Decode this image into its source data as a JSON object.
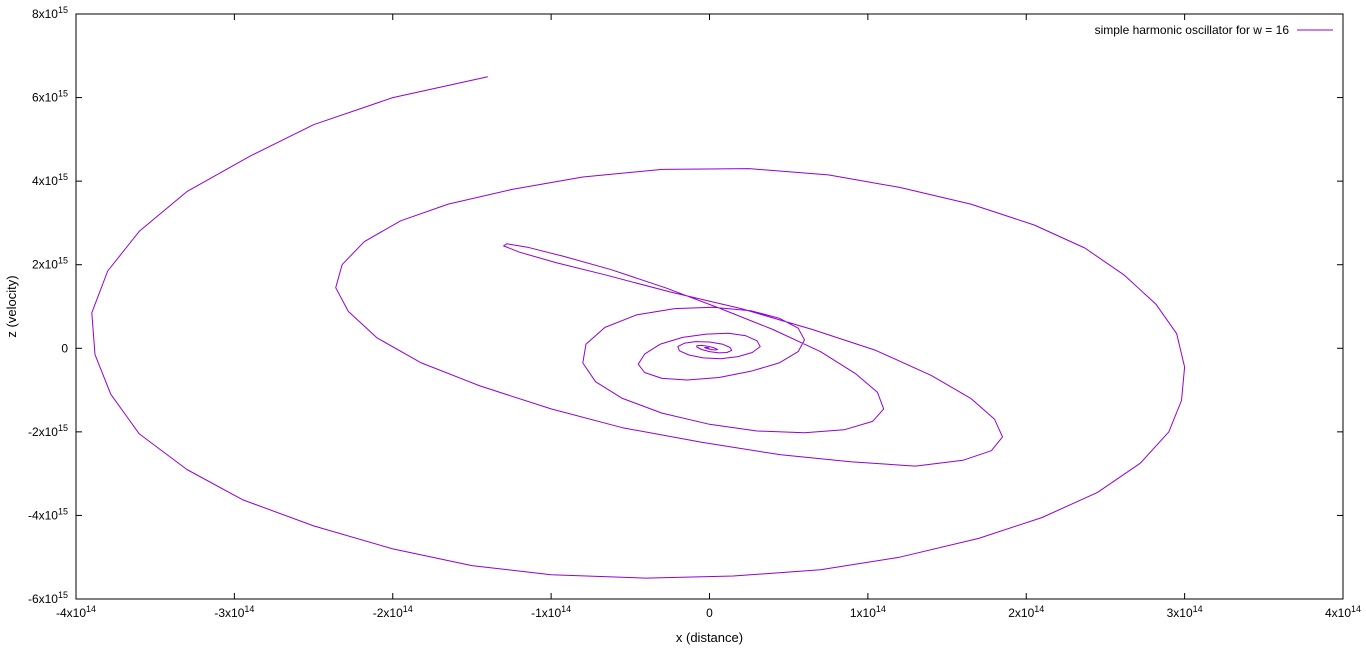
{
  "chart_data": {
    "type": "line",
    "title": "",
    "xlabel": "x (distance)",
    "ylabel": "z (velocity)",
    "xlim": [
      -400000000000000.0,
      400000000000000.0
    ],
    "ylim": [
      -6000000000000000.0,
      8000000000000000.0
    ],
    "x_ticks": [
      {
        "value": -400000000000000.0,
        "mant": "-4x10",
        "exp": "14"
      },
      {
        "value": -300000000000000.0,
        "mant": "-3x10",
        "exp": "14"
      },
      {
        "value": -200000000000000.0,
        "mant": "-2x10",
        "exp": "14"
      },
      {
        "value": -100000000000000.0,
        "mant": "-1x10",
        "exp": "14"
      },
      {
        "value": 0,
        "mant": "0",
        "exp": ""
      },
      {
        "value": 100000000000000.0,
        "mant": "1x10",
        "exp": "14"
      },
      {
        "value": 200000000000000.0,
        "mant": "2x10",
        "exp": "14"
      },
      {
        "value": 300000000000000.0,
        "mant": "3x10",
        "exp": "14"
      },
      {
        "value": 400000000000000.0,
        "mant": "4x10",
        "exp": "14"
      }
    ],
    "y_ticks": [
      {
        "value": -6000000000000000.0,
        "mant": "-6x10",
        "exp": "15"
      },
      {
        "value": -4000000000000000.0,
        "mant": "-4x10",
        "exp": "15"
      },
      {
        "value": -2000000000000000.0,
        "mant": "-2x10",
        "exp": "15"
      },
      {
        "value": 0,
        "mant": "0",
        "exp": ""
      },
      {
        "value": 2000000000000000.0,
        "mant": "2x10",
        "exp": "15"
      },
      {
        "value": 4000000000000000.0,
        "mant": "4x10",
        "exp": "15"
      },
      {
        "value": 6000000000000000.0,
        "mant": "6x10",
        "exp": "15"
      },
      {
        "value": 8000000000000000.0,
        "mant": "8x10",
        "exp": "15"
      }
    ],
    "grid": false,
    "legend_position": "top-right",
    "series": [
      {
        "name": "simple harmonic oscillator for w = 16",
        "color": "#9400D3",
        "x": [
          -140000000000000.0,
          -200000000000000.0,
          -250000000000000.0,
          -290000000000000.0,
          -330000000000000.0,
          -360000000000000.0,
          -380000000000000.0,
          -390000000000000.0,
          -388000000000000.0,
          -378000000000000.0,
          -360000000000000.0,
          -330000000000000.0,
          -295000000000000.0,
          -250000000000000.0,
          -200000000000000.0,
          -150000000000000.0,
          -100000000000000.0,
          -40000000000000.0,
          15000000000000.0,
          70000000000000.0,
          120000000000000.0,
          170000000000000.0,
          210000000000000.0,
          245000000000000.0,
          272000000000000.0,
          290000000000000.0,
          298000000000000.0,
          300000000000000.0,
          295000000000000.0,
          282000000000000.0,
          262000000000000.0,
          237000000000000.0,
          205000000000000.0,
          165000000000000.0,
          120000000000000.0,
          75000000000000.0,
          25000000000000.0,
          -30000000000000.0,
          -80000000000000.0,
          -125000000000000.0,
          -165000000000000.0,
          -195000000000000.0,
          -218000000000000.0,
          -232000000000000.0,
          -236000000000000.0,
          -228000000000000.0,
          -210000000000000.0,
          -182000000000000.0,
          -145000000000000.0,
          -100000000000000.0,
          -55000000000000.0,
          -5000000000000.0,
          45000000000000.0,
          90000000000000.0,
          130000000000000.0,
          160000000000000.0,
          178000000000000.0,
          185000000000000.0,
          180000000000000.0,
          165000000000000.0,
          140000000000000.0,
          105000000000000.0,
          65000000000000.0,
          20000000000000.0,
          -25000000000000.0,
          -65000000000000.0,
          -97000000000000.0,
          -120000000000000.0,
          -130000000000000.0,
          -128000000000000.0,
          -115000000000000.0,
          -92000000000000.0,
          -62000000000000.0,
          -28000000000000.0,
          7000000000000.0,
          40000000000000.0,
          70000000000000.0,
          92000000000000.0,
          106000000000000.0,
          110000000000000.0,
          103000000000000.0,
          85000000000000.0,
          60000000000000.0,
          30000000000000.0,
          0.0,
          -30000000000000.0,
          -55000000000000.0,
          -72000000000000.0,
          -80000000000000.0,
          -78000000000000.0,
          -66000000000000.0,
          -46000000000000.0,
          -22000000000000.0,
          2000000000000.0,
          26000000000000.0,
          44000000000000.0,
          56000000000000.0,
          60000000000000.0,
          56000000000000.0,
          44000000000000.0,
          26000000000000.0,
          6000000000000.0,
          -14000000000000.0,
          -30000000000000.0,
          -41000000000000.0,
          -45000000000000.0,
          -41000000000000.0,
          -31000000000000.0,
          -17000000000000.0,
          -2000000000000.0,
          12000000000000.0,
          23000000000000.0,
          30000000000000.0,
          32000000000000.0,
          27000000000000.0,
          18000000000000.0,
          7000000000000.0,
          -4000000000000.0,
          -13000000000000.0,
          -19000000000000.0,
          -20000000000000.0,
          -16000000000000.0,
          -9000000000000.0,
          0.0,
          8000000000000.0,
          13000000000000.0,
          14000000000000.0,
          11000000000000.0,
          6000000000000.0,
          0.0,
          -5000000000000.0,
          -8000000000000.0,
          -8000000000000.0,
          -5000000000000.0,
          -1000000000000.0,
          3000000000000.0,
          5000000000000.0,
          4000000000000.0,
          1000000000000.0,
          -2000000000000.0,
          -3000000000000.0,
          -1000000000000.0,
          0.0
        ],
        "y": [
          6500000000000000.0,
          6000000000000000.0,
          5350000000000000.0,
          4600000000000000.0,
          3750000000000000.0,
          2800000000000000.0,
          1850000000000000.0,
          850000000000000.0,
          -150000000000000.0,
          -1100000000000000.0,
          -2050000000000000.0,
          -2900000000000000.0,
          -3620000000000000.0,
          -4250000000000000.0,
          -4800000000000000.0,
          -5200000000000000.0,
          -5420000000000000.0,
          -5500000000000000.0,
          -5450000000000000.0,
          -5300000000000000.0,
          -5000000000000000.0,
          -4550000000000000.0,
          -4050000000000000.0,
          -3450000000000000.0,
          -2750000000000000.0,
          -2000000000000000.0,
          -1250000000000000.0,
          -450000000000000.0,
          350000000000000.0,
          1050000000000000.0,
          1750000000000000.0,
          2400000000000000.0,
          2950000000000000.0,
          3450000000000000.0,
          3850000000000000.0,
          4150000000000000.0,
          4300000000000000.0,
          4280000000000000.0,
          4100000000000000.0,
          3800000000000000.0,
          3450000000000000.0,
          3050000000000000.0,
          2550000000000000.0,
          2000000000000000.0,
          1450000000000000.0,
          880000000000000.0,
          250000000000000.0,
          -350000000000000.0,
          -900000000000000.0,
          -1450000000000000.0,
          -1900000000000000.0,
          -2250000000000000.0,
          -2550000000000000.0,
          -2720000000000000.0,
          -2820000000000000.0,
          -2680000000000000.0,
          -2450000000000000.0,
          -2120000000000000.0,
          -1700000000000000.0,
          -1200000000000000.0,
          -650000000000000.0,
          -50000000000000.0,
          450000000000000.0,
          950000000000000.0,
          1350000000000000.0,
          1750000000000000.0,
          2050000000000000.0,
          2300000000000000.0,
          2450000000000000.0,
          2500000000000000.0,
          2420000000000000.0,
          2200000000000000.0,
          1880000000000000.0,
          1450000000000000.0,
          950000000000000.0,
          450000000000000.0,
          -80000000000000.0,
          -600000000000000.0,
          -1050000000000000.0,
          -1450000000000000.0,
          -1750000000000000.0,
          -1950000000000000.0,
          -2020000000000000.0,
          -1980000000000000.0,
          -1820000000000000.0,
          -1550000000000000.0,
          -1200000000000000.0,
          -800000000000000.0,
          -350000000000000.0,
          100000000000000.0,
          500000000000000.0,
          800000000000000.0,
          950000000000000.0,
          980000000000000.0,
          900000000000000.0,
          720000000000000.0,
          480000000000000.0,
          200000000000000.0,
          -80000000000000.0,
          -350000000000000.0,
          -550000000000000.0,
          -700000000000000.0,
          -760000000000000.0,
          -720000000000000.0,
          -580000000000000.0,
          -380000000000000.0,
          -140000000000000.0,
          100000000000000.0,
          260000000000000.0,
          340000000000000.0,
          360000000000000.0,
          300000000000000.0,
          180000000000000.0,
          40000000000000.0,
          -100000000000000.0,
          -200000000000000.0,
          -250000000000000.0,
          -230000000000000.0,
          -160000000000000.0,
          -60000000000000.0,
          40000000000000.0,
          120000000000000.0,
          160000000000000.0,
          150000000000000.0,
          100000000000000.0,
          20000000000000.0,
          -50000000000000.0,
          -100000000000000.0,
          -110000000000000.0,
          -80000000000000.0,
          -30000000000000.0,
          30000000000000.0,
          60000000000000.0,
          70000000000000.0,
          50000000000000.0,
          10000000000000.0,
          -30000000000000.0,
          -40000000000000.0,
          -30000000000000.0,
          0.0,
          20000000000000.0,
          20000000000000.0,
          0.0
        ]
      }
    ]
  }
}
